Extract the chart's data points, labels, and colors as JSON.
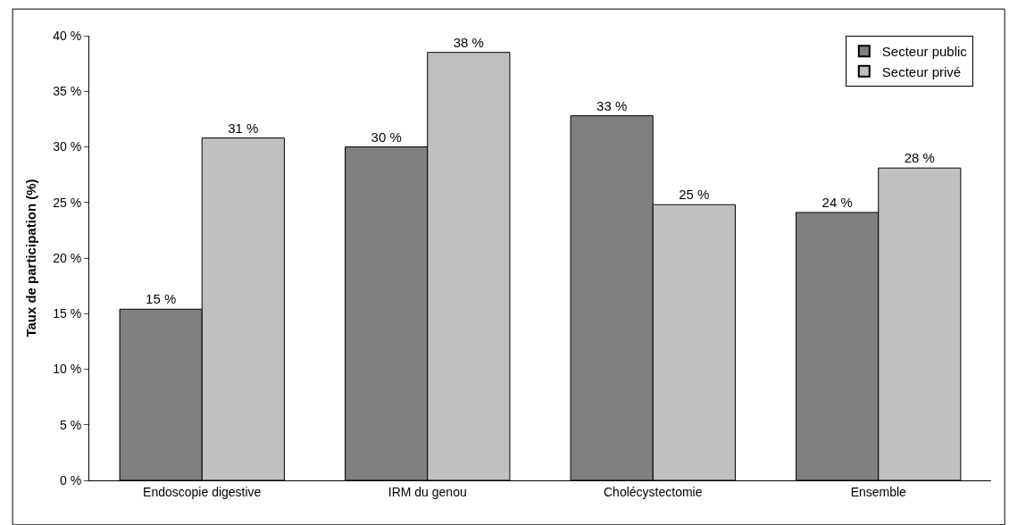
{
  "chart_data": {
    "type": "bar",
    "ylabel": "Taux de participation (%)",
    "categories": [
      "Endoscopie digestive",
      "IRM du genou",
      "Cholécystectomie",
      "Ensemble"
    ],
    "series": [
      {
        "name": "Secteur public",
        "color": "#808080",
        "values": [
          15.4,
          30.0,
          32.8,
          24.1
        ],
        "value_labels": [
          "15 %",
          "30 %",
          "33 %",
          "24 %"
        ]
      },
      {
        "name": "Secteur privé",
        "color": "#c0c0c0",
        "values": [
          30.8,
          38.5,
          24.8,
          28.1
        ],
        "value_labels": [
          "31 %",
          "38 %",
          "25 %",
          "28 %"
        ]
      }
    ],
    "ylim": [
      0,
      40
    ],
    "yticks": [
      {
        "value": 0,
        "label": "0 %"
      },
      {
        "value": 5,
        "label": "5 %"
      },
      {
        "value": 10,
        "label": "10 %"
      },
      {
        "value": 15,
        "label": "15 %"
      },
      {
        "value": 20,
        "label": "20 %"
      },
      {
        "value": 25,
        "label": "25 %"
      },
      {
        "value": 30,
        "label": "30 %"
      },
      {
        "value": 35,
        "label": "35 %"
      },
      {
        "value": 40,
        "label": "40 %"
      }
    ],
    "legend": "top right",
    "grid": false
  }
}
